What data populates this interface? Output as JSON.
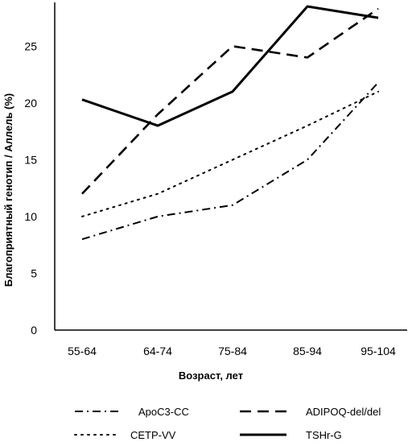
{
  "chart_data": {
    "type": "line",
    "xlabel": "Возраст, лет",
    "ylabel": "Благоприятный генотип / Аллель (%)",
    "categories": [
      "55-64",
      "64-74",
      "75-84",
      "85-94",
      "95-104"
    ],
    "ylim": [
      0,
      28.5
    ],
    "yticks": [
      0,
      5,
      10,
      15,
      20,
      25
    ],
    "grid": false,
    "legend_position": "bottom",
    "series": [
      {
        "name": "ApoC3-CC",
        "values": [
          8,
          10,
          11,
          15,
          21.8
        ],
        "style": "dash-dot",
        "color": "#000000"
      },
      {
        "name": "CETP-VV",
        "values": [
          10,
          12,
          15,
          18,
          21
        ],
        "style": "dotted",
        "color": "#000000"
      },
      {
        "name": "ADIPOQ-del/del",
        "values": [
          12,
          19,
          25,
          24,
          28.3
        ],
        "style": "dashed",
        "color": "#000000"
      },
      {
        "name": "TSHr-G",
        "values": [
          20.3,
          18,
          21,
          28.5,
          27.5
        ],
        "style": "solid",
        "color": "#000000"
      }
    ]
  }
}
